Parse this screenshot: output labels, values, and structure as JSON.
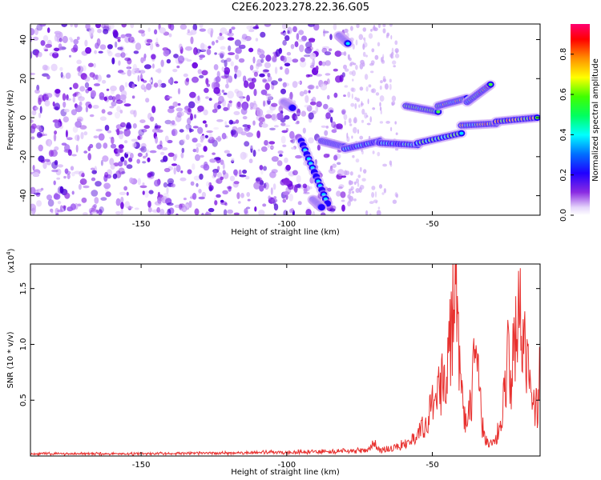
{
  "title": "C2E6.2023.278.22.36.G05",
  "chart_data": [
    {
      "type": "heatmap",
      "xlabel": "Height of straight line (km)",
      "ylabel": "Frequency (Hz)",
      "xlim": [
        -188,
        -13
      ],
      "ylim": [
        -50,
        48
      ],
      "xticks": [
        -150,
        -100,
        -50
      ],
      "yticks": [
        -40,
        -20,
        0,
        20,
        40
      ],
      "colorbar": {
        "label": "Normalized spectral amplitude",
        "range": [
          0,
          0.95
        ],
        "ticks": [
          0.0,
          0.2,
          0.4,
          0.6,
          0.8
        ]
      },
      "features": [
        {
          "x": [
            -95,
            -86
          ],
          "y": [
            -12,
            -44
          ]
        },
        {
          "x": [
            -88,
            -80
          ],
          "y": [
            -12,
            -15
          ]
        },
        {
          "x": [
            -80,
            -68
          ],
          "y": [
            -16,
            -12
          ]
        },
        {
          "x": [
            -68,
            -55
          ],
          "y": [
            -13,
            -14
          ]
        },
        {
          "x": [
            -55,
            -40
          ],
          "y": [
            -13,
            -8
          ]
        },
        {
          "x": [
            -40,
            -28
          ],
          "y": [
            -4,
            -3
          ]
        },
        {
          "x": [
            -28,
            -14
          ],
          "y": [
            -2,
            0
          ]
        },
        {
          "x": [
            -59,
            -48
          ],
          "y": [
            6,
            3
          ]
        },
        {
          "x": [
            -48,
            -38
          ],
          "y": [
            6,
            10
          ]
        },
        {
          "x": [
            -38,
            -30
          ],
          "y": [
            8,
            17
          ]
        },
        {
          "x": [
            -91,
            -88
          ],
          "y": [
            -42,
            -46
          ]
        },
        {
          "x": [
            -82,
            -79
          ],
          "y": [
            42,
            38
          ]
        },
        {
          "x": [
            -101,
            -98
          ],
          "y": [
            8,
            5
          ]
        }
      ]
    },
    {
      "type": "line",
      "xlabel": "Height of straight line (km)",
      "ylabel": "SNR (10 * v/v)",
      "multiplier": "(x10",
      "multiplier_exp": "4",
      "multiplier_close": ")",
      "xlim": [
        -188,
        -13
      ],
      "ylim": [
        0,
        1.72
      ],
      "xticks": [
        -150,
        -100,
        -50
      ],
      "yticks": [
        0.5,
        1.0,
        1.5
      ],
      "ytick_labels": [
        "0.5",
        "1.0",
        "1.5"
      ],
      "color": "#e8312f",
      "x": [
        -188,
        -150,
        -110,
        -90,
        -72,
        -70,
        -68,
        -62,
        -58,
        -55,
        -52,
        -50,
        -48,
        -46,
        -45,
        -44,
        -43,
        -42.5,
        -42,
        -41.5,
        -41,
        -40,
        -39,
        -38,
        -37,
        -36,
        -35,
        -34,
        -33,
        -32,
        -31,
        -30,
        -28,
        -26,
        -25,
        -24,
        -23,
        -22,
        -21,
        -20,
        -19,
        -18,
        -17,
        -16,
        -15,
        -14,
        -13
      ],
      "y": [
        0.02,
        0.02,
        0.03,
        0.04,
        0.05,
        0.12,
        0.05,
        0.08,
        0.12,
        0.2,
        0.3,
        0.45,
        0.55,
        0.7,
        0.9,
        1.0,
        1.3,
        1.55,
        1.7,
        1.4,
        0.9,
        0.55,
        0.35,
        0.3,
        0.45,
        0.7,
        0.85,
        0.6,
        0.3,
        0.15,
        0.12,
        0.1,
        0.15,
        0.4,
        0.6,
        0.9,
        0.7,
        0.95,
        1.1,
        1.2,
        1.0,
        0.95,
        0.8,
        0.55,
        0.45,
        0.45,
        0.85
      ]
    }
  ]
}
